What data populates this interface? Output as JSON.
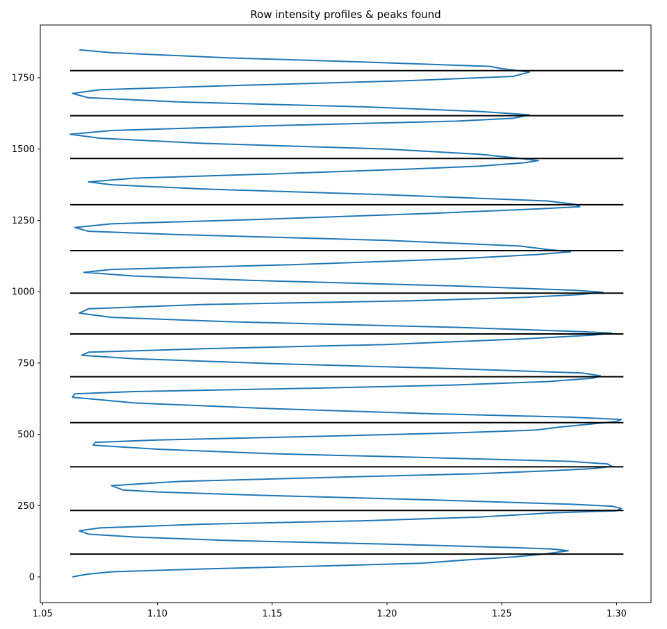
{
  "chart_data": {
    "type": "line",
    "title": "Row intensity profiles & peaks found",
    "xlabel": "",
    "ylabel": "",
    "xlim": [
      1.049,
      1.315
    ],
    "ylim": [
      -90,
      1935
    ],
    "x_ticks": [
      1.05,
      1.1,
      1.15,
      1.2,
      1.25,
      1.3
    ],
    "x_tick_labels": [
      "1.05",
      "1.10",
      "1.15",
      "1.20",
      "1.25",
      "1.30"
    ],
    "y_ticks": [
      0,
      250,
      500,
      750,
      1000,
      1250,
      1500,
      1750
    ],
    "y_tick_labels": [
      "0",
      "250",
      "500",
      "750",
      "1000",
      "1250",
      "1500",
      "1750"
    ],
    "grid": false,
    "series": [
      {
        "color": "#1f77b4",
        "points": [
          [
            1.063,
            0
          ],
          [
            1.066,
            5
          ],
          [
            1.07,
            10
          ],
          [
            1.08,
            18
          ],
          [
            1.12,
            28
          ],
          [
            1.17,
            38
          ],
          [
            1.215,
            48
          ],
          [
            1.235,
            60
          ],
          [
            1.255,
            70
          ],
          [
            1.268,
            80
          ],
          [
            1.279,
            92
          ],
          [
            1.272,
            98
          ],
          [
            1.255,
            103
          ],
          [
            1.2,
            115
          ],
          [
            1.13,
            128
          ],
          [
            1.09,
            140
          ],
          [
            1.07,
            150
          ],
          [
            1.066,
            162
          ],
          [
            1.075,
            172
          ],
          [
            1.12,
            185
          ],
          [
            1.19,
            197
          ],
          [
            1.24,
            210
          ],
          [
            1.262,
            220
          ],
          [
            1.272,
            225
          ],
          [
            1.3,
            232
          ],
          [
            1.302,
            240
          ],
          [
            1.298,
            248
          ],
          [
            1.28,
            255
          ],
          [
            1.22,
            270
          ],
          [
            1.15,
            285
          ],
          [
            1.1,
            298
          ],
          [
            1.085,
            305
          ],
          [
            1.08,
            320
          ],
          [
            1.11,
            335
          ],
          [
            1.18,
            350
          ],
          [
            1.24,
            362
          ],
          [
            1.27,
            372
          ],
          [
            1.29,
            380
          ],
          [
            1.298,
            388
          ],
          [
            1.296,
            396
          ],
          [
            1.28,
            405
          ],
          [
            1.22,
            418
          ],
          [
            1.15,
            432
          ],
          [
            1.1,
            448
          ],
          [
            1.072,
            462
          ],
          [
            1.073,
            472
          ],
          [
            1.1,
            480
          ],
          [
            1.17,
            493
          ],
          [
            1.23,
            505
          ],
          [
            1.265,
            515
          ],
          [
            1.275,
            525
          ],
          [
            1.3,
            545
          ],
          [
            1.302,
            552
          ],
          [
            1.28,
            560
          ],
          [
            1.22,
            572
          ],
          [
            1.15,
            590
          ],
          [
            1.09,
            610
          ],
          [
            1.063,
            630
          ],
          [
            1.064,
            642
          ],
          [
            1.09,
            650
          ],
          [
            1.17,
            662
          ],
          [
            1.23,
            673
          ],
          [
            1.27,
            685
          ],
          [
            1.29,
            697
          ],
          [
            1.293,
            705
          ],
          [
            1.285,
            715
          ],
          [
            1.23,
            730
          ],
          [
            1.15,
            748
          ],
          [
            1.09,
            765
          ],
          [
            1.067,
            777
          ],
          [
            1.07,
            788
          ],
          [
            1.12,
            800
          ],
          [
            1.2,
            815
          ],
          [
            1.26,
            835
          ],
          [
            1.29,
            848
          ],
          [
            1.298,
            855
          ],
          [
            1.285,
            860
          ],
          [
            1.23,
            875
          ],
          [
            1.13,
            895
          ],
          [
            1.08,
            910
          ],
          [
            1.066,
            925
          ],
          [
            1.07,
            940
          ],
          [
            1.12,
            955
          ],
          [
            1.21,
            968
          ],
          [
            1.26,
            980
          ],
          [
            1.284,
            990
          ],
          [
            1.294,
            998
          ],
          [
            1.282,
            1005
          ],
          [
            1.23,
            1020
          ],
          [
            1.14,
            1040
          ],
          [
            1.09,
            1055
          ],
          [
            1.068,
            1068
          ],
          [
            1.08,
            1078
          ],
          [
            1.16,
            1095
          ],
          [
            1.23,
            1115
          ],
          [
            1.265,
            1130
          ],
          [
            1.28,
            1140
          ],
          [
            1.27,
            1148
          ],
          [
            1.258,
            1160
          ],
          [
            1.2,
            1180
          ],
          [
            1.11,
            1200
          ],
          [
            1.07,
            1212
          ],
          [
            1.064,
            1225
          ],
          [
            1.08,
            1238
          ],
          [
            1.15,
            1255
          ],
          [
            1.22,
            1275
          ],
          [
            1.265,
            1290
          ],
          [
            1.284,
            1298
          ],
          [
            1.282,
            1306
          ],
          [
            1.27,
            1318
          ],
          [
            1.2,
            1340
          ],
          [
            1.12,
            1360
          ],
          [
            1.08,
            1375
          ],
          [
            1.07,
            1385
          ],
          [
            1.09,
            1398
          ],
          [
            1.15,
            1413
          ],
          [
            1.21,
            1430
          ],
          [
            1.24,
            1440
          ],
          [
            1.26,
            1452
          ],
          [
            1.266,
            1460
          ],
          [
            1.255,
            1470
          ],
          [
            1.24,
            1482
          ],
          [
            1.2,
            1500
          ],
          [
            1.12,
            1520
          ],
          [
            1.075,
            1538
          ],
          [
            1.062,
            1552
          ],
          [
            1.08,
            1565
          ],
          [
            1.15,
            1582
          ],
          [
            1.23,
            1598
          ],
          [
            1.255,
            1608
          ],
          [
            1.262,
            1620
          ],
          [
            1.24,
            1632
          ],
          [
            1.19,
            1648
          ],
          [
            1.11,
            1665
          ],
          [
            1.07,
            1680
          ],
          [
            1.063,
            1695
          ],
          [
            1.075,
            1708
          ],
          [
            1.13,
            1722
          ],
          [
            1.21,
            1740
          ],
          [
            1.255,
            1755
          ],
          [
            1.262,
            1770
          ],
          [
            1.25,
            1782
          ],
          [
            1.245,
            1790
          ],
          [
            1.19,
            1805
          ],
          [
            1.13,
            1820
          ],
          [
            1.08,
            1838
          ],
          [
            1.066,
            1848
          ]
        ]
      }
    ],
    "hlines": {
      "color": "#000000",
      "xrange": [
        1.062,
        1.303
      ],
      "y": [
        80,
        233,
        386,
        541,
        702,
        852,
        995,
        1144,
        1305,
        1467,
        1617,
        1775
      ]
    }
  }
}
